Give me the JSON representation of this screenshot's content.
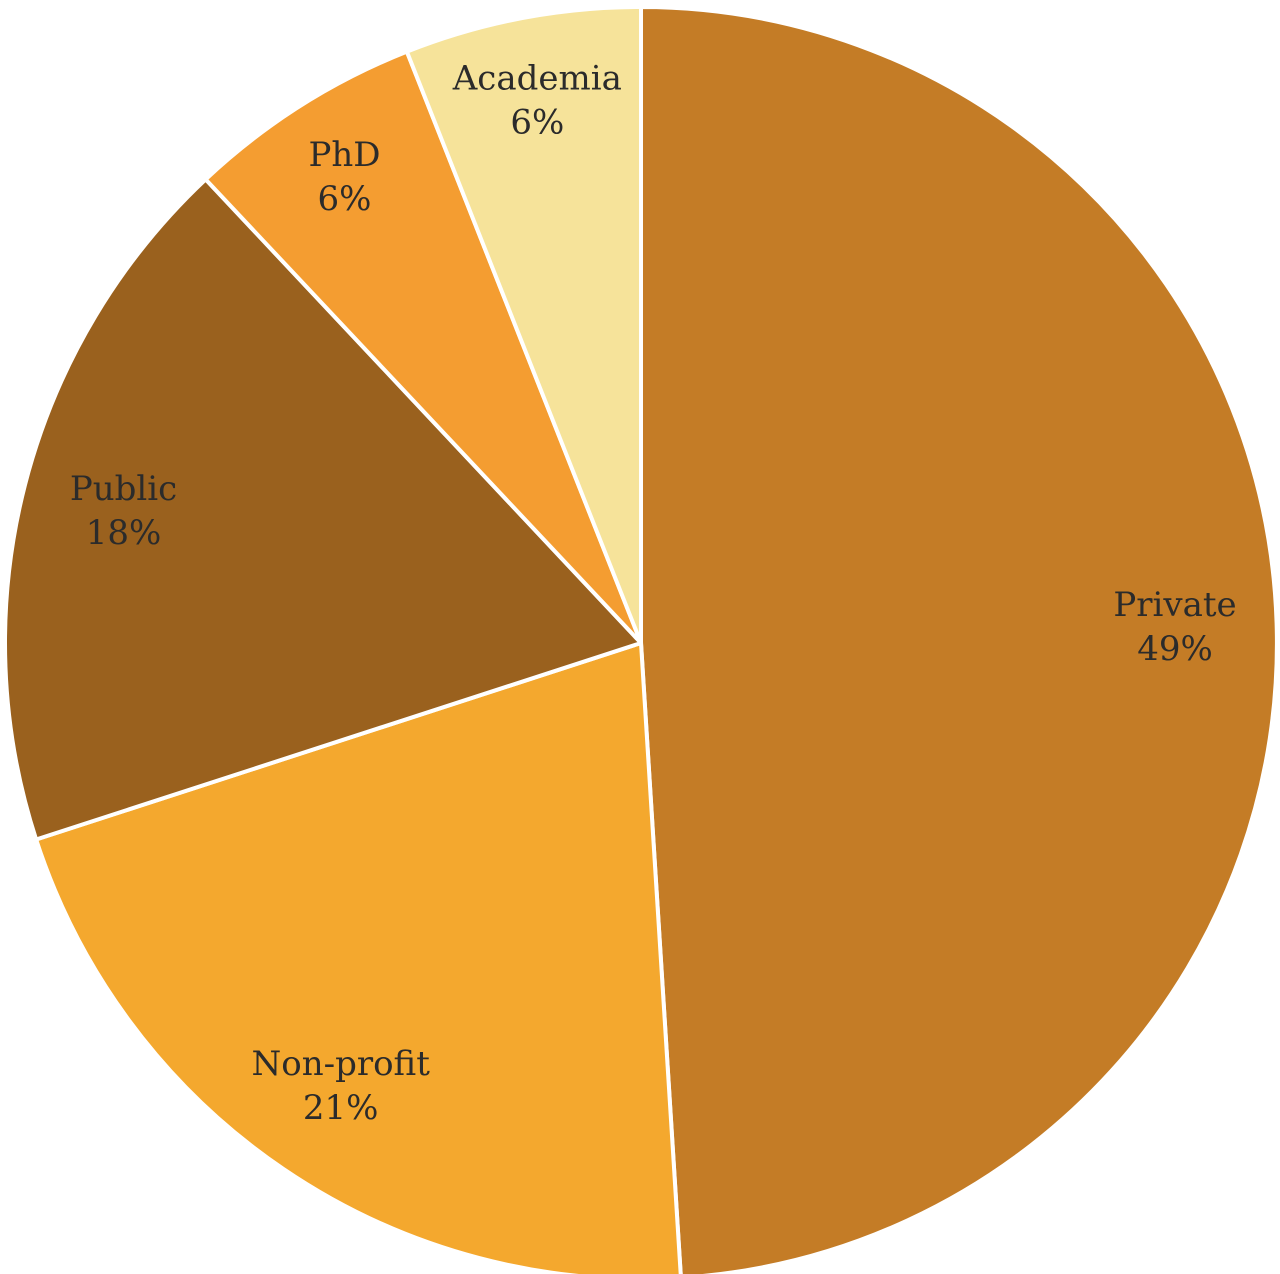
{
  "chart_data": {
    "type": "pie",
    "title": "",
    "start_angle_deg": 0,
    "direction": "clockwise",
    "slices": [
      {
        "label": "Private",
        "value": 49,
        "value_label": "49%",
        "color": "#C47C26"
      },
      {
        "label": "Non-profit",
        "value": 21,
        "value_label": "21%",
        "color": "#F4A82E"
      },
      {
        "label": "Public",
        "value": 18,
        "value_label": "18%",
        "color": "#9A611E"
      },
      {
        "label": "PhD",
        "value": 6,
        "value_label": "6%",
        "color": "#F49D31"
      },
      {
        "label": "Academia",
        "value": 6,
        "value_label": "6%",
        "color": "#F6E39A"
      }
    ],
    "legend": "none",
    "data_labels": "inside"
  }
}
